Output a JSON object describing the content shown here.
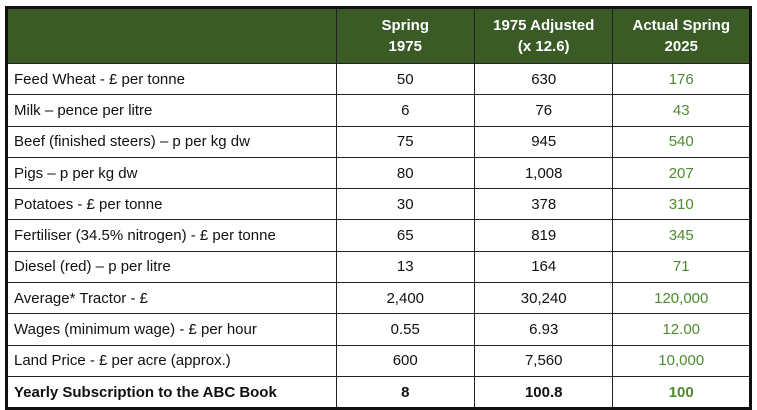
{
  "colors": {
    "header_bg": "#3a5a26",
    "header_text": "#ffffff",
    "actual_text": "#4e8a2e"
  },
  "headers": [
    "",
    "Spring\n1975",
    "1975 Adjusted\n(x 12.6)",
    "Actual Spring\n2025"
  ],
  "header_lines": [
    [
      "",
      ""
    ],
    [
      "Spring",
      "1975"
    ],
    [
      "1975 Adjusted",
      "(x 12.6)"
    ],
    [
      "Actual Spring",
      "2025"
    ]
  ],
  "rows": [
    {
      "item": "Feed Wheat - £ per tonne",
      "spring_1975": "50",
      "adjusted_1975": "630",
      "actual_2025": "176"
    },
    {
      "item": "Milk – pence per litre",
      "spring_1975": "6",
      "adjusted_1975": "76",
      "actual_2025": "43"
    },
    {
      "item": "Beef (finished steers) – p per kg dw",
      "spring_1975": "75",
      "adjusted_1975": "945",
      "actual_2025": "540"
    },
    {
      "item": "Pigs – p per kg dw",
      "spring_1975": "80",
      "adjusted_1975": "1,008",
      "actual_2025": "207"
    },
    {
      "item": "Potatoes - £ per tonne",
      "spring_1975": "30",
      "adjusted_1975": "378",
      "actual_2025": "310"
    },
    {
      "item": "Fertiliser (34.5% nitrogen) - £ per tonne",
      "spring_1975": "65",
      "adjusted_1975": "819",
      "actual_2025": "345"
    },
    {
      "item": "Diesel (red) – p per litre",
      "spring_1975": "13",
      "adjusted_1975": "164",
      "actual_2025": "71"
    },
    {
      "item": "Average* Tractor - £",
      "spring_1975": "2,400",
      "adjusted_1975": "30,240",
      "actual_2025": "120,000"
    },
    {
      "item": "Wages (minimum wage) - £ per hour",
      "spring_1975": "0.55",
      "adjusted_1975": "6.93",
      "actual_2025": "12.00"
    },
    {
      "item": "Land Price - £ per acre (approx.)",
      "spring_1975": "600",
      "adjusted_1975": "7,560",
      "actual_2025": "10,000"
    },
    {
      "item": "Yearly Subscription to the ABC Book",
      "spring_1975": "8",
      "adjusted_1975": "100.8",
      "actual_2025": "100",
      "bold": true
    }
  ]
}
